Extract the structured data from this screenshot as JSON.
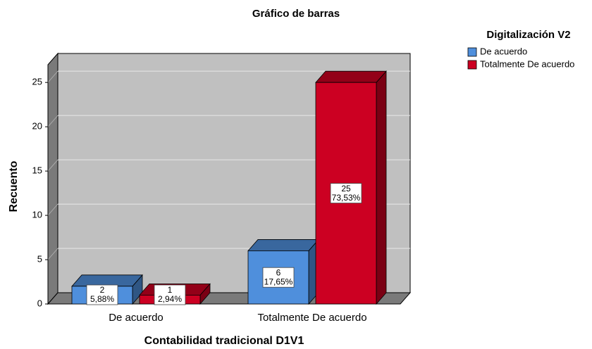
{
  "chart_data": {
    "type": "bar3d",
    "title": "Gráfico de barras",
    "xlabel": "Contabilidad tradicional D1V1",
    "ylabel": "Recuento",
    "legend_title": "Digitalización V2",
    "legend_position": "top-right",
    "categories": [
      "De acuerdo",
      "Totalmente De acuerdo"
    ],
    "series": [
      {
        "name": "De acuerdo",
        "color": "#4f8fdc",
        "values": [
          2,
          6
        ],
        "percent_labels": [
          "5,88%",
          "17,65%"
        ]
      },
      {
        "name": "Totalmente De acuerdo",
        "color": "#cc0022",
        "values": [
          1,
          25
        ],
        "percent_labels": [
          "2,94%",
          "73,53%"
        ]
      }
    ],
    "ylim": [
      0,
      27
    ],
    "yticks": [
      0,
      5,
      10,
      15,
      20,
      25
    ],
    "grid": true
  }
}
